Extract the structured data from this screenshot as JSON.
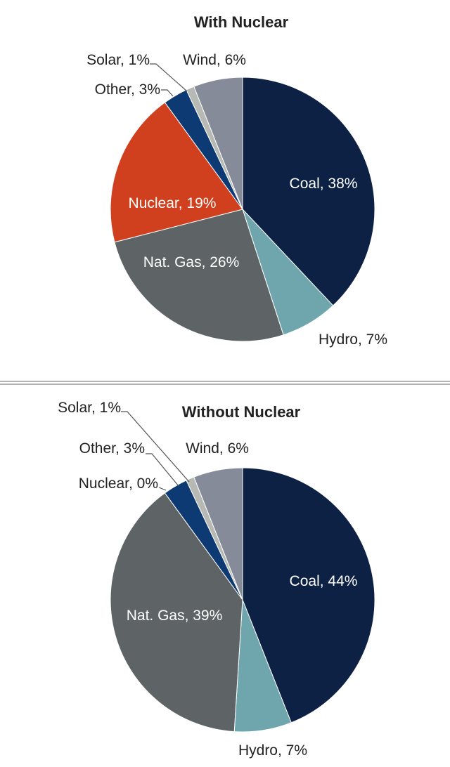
{
  "chart_data": [
    {
      "type": "pie",
      "title": "With Nuclear",
      "slices": [
        {
          "name": "Coal",
          "value": 38,
          "label": "Coal, 38%",
          "color": "#0d2145"
        },
        {
          "name": "Hydro",
          "value": 7,
          "label": "Hydro, 7%",
          "color": "#6fa5ad"
        },
        {
          "name": "Nat. Gas",
          "value": 26,
          "label": "Nat. Gas, 26%",
          "color": "#5e6366"
        },
        {
          "name": "Nuclear",
          "value": 19,
          "label": "Nuclear, 19%",
          "color": "#d03f1e"
        },
        {
          "name": "Other",
          "value": 3,
          "label": "Other, 3%",
          "color": "#0e3a73"
        },
        {
          "name": "Solar",
          "value": 1,
          "label": "Solar, 1%",
          "color": "#b7b9b4"
        },
        {
          "name": "Wind",
          "value": 6,
          "label": "Wind, 6%",
          "color": "#858b99"
        }
      ]
    },
    {
      "type": "pie",
      "title": "Without Nuclear",
      "slices": [
        {
          "name": "Coal",
          "value": 44,
          "label": "Coal, 44%",
          "color": "#0d2145"
        },
        {
          "name": "Hydro",
          "value": 7,
          "label": "Hydro, 7%",
          "color": "#6fa5ad"
        },
        {
          "name": "Nat. Gas",
          "value": 39,
          "label": "Nat. Gas, 39%",
          "color": "#5e6366"
        },
        {
          "name": "Nuclear",
          "value": 0,
          "label": "Nuclear, 0%",
          "color": "#d03f1e"
        },
        {
          "name": "Other",
          "value": 3,
          "label": "Other, 3%",
          "color": "#0e3a73"
        },
        {
          "name": "Solar",
          "value": 1,
          "label": "Solar, 1%",
          "color": "#b7b9b4"
        },
        {
          "name": "Wind",
          "value": 6,
          "label": "Wind, 6%",
          "color": "#858b99"
        }
      ]
    }
  ]
}
